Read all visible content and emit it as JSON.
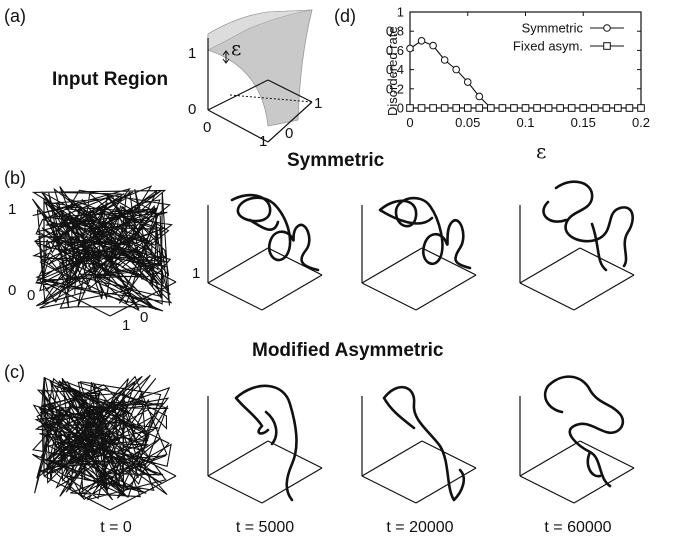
{
  "panels": {
    "a": {
      "letter": "(a)",
      "title": "Input Region",
      "epsilon_label": "ε",
      "ticks": {
        "vertical_top": "1",
        "vertical_bottom": "0",
        "front": "0",
        "bottom": "1",
        "right": "1",
        "corner": "0"
      }
    },
    "b": {
      "letter": "(b)",
      "title": "Symmetric",
      "ticks": {
        "top": "1",
        "bottom": "0",
        "front": "0",
        "left_one": "1",
        "right_zero": "0",
        "side_one": "1"
      }
    },
    "c": {
      "letter": "(c)",
      "title": "Modified Asymmetric"
    },
    "d": {
      "letter": "(d)"
    }
  },
  "time_labels": [
    "t = 0",
    "t = 5000",
    "t = 20000",
    "t = 60000"
  ],
  "chart_data": {
    "type": "line",
    "title": "",
    "xlabel": "ε",
    "ylabel": "Disordered rate",
    "xlim": [
      0,
      0.2
    ],
    "ylim": [
      0,
      1
    ],
    "xticks": [
      "0",
      "0.05",
      "0.1",
      "0.15",
      "0.2"
    ],
    "yticks": [
      "0",
      "0.2",
      "0.4",
      "0.6",
      "0.8",
      "1"
    ],
    "legend_position": "top-right",
    "series": [
      {
        "name": "Symmetric",
        "marker": "circle",
        "x": [
          0,
          0.01,
          0.02,
          0.03,
          0.04,
          0.05,
          0.06,
          0.07,
          0.08,
          0.09,
          0.1,
          0.11,
          0.12,
          0.13,
          0.14,
          0.15,
          0.16,
          0.17,
          0.18,
          0.19,
          0.2
        ],
        "y": [
          0.62,
          0.7,
          0.65,
          0.5,
          0.4,
          0.27,
          0.12,
          0,
          0,
          0,
          0,
          0,
          0,
          0,
          0,
          0,
          0,
          0,
          0,
          0,
          0
        ]
      },
      {
        "name": "Fixed asym.",
        "marker": "square",
        "x": [
          0,
          0.01,
          0.02,
          0.03,
          0.04,
          0.05,
          0.06,
          0.07,
          0.08,
          0.09,
          0.1,
          0.11,
          0.12,
          0.13,
          0.14,
          0.15,
          0.16,
          0.17,
          0.18,
          0.19,
          0.2
        ],
        "y": [
          0,
          0,
          0,
          0,
          0,
          0,
          0,
          0,
          0,
          0,
          0,
          0,
          0,
          0,
          0,
          0,
          0,
          0,
          0,
          0,
          0
        ]
      }
    ]
  }
}
